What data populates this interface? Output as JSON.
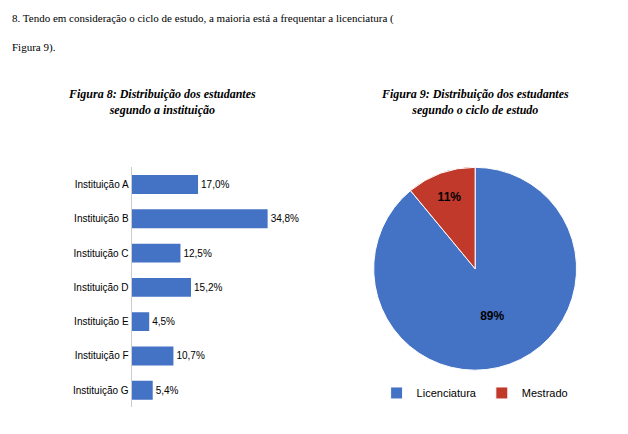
{
  "chart_data": [
    {
      "type": "bar",
      "title": "Figura 8: Distribuição dos estudantes\nsegundo a instituição",
      "annotations": [
        "8. Tendo em consideração o ciclo de estudo, a maioria está a frequentar a licenciatura (",
        "Figura 9)."
      ],
      "orientation": "horizontal",
      "categories": [
        "Instituição G",
        "Instituição F",
        "Instituição E",
        "Instituição D",
        "Instituição C",
        "Instituição B",
        "Instituição A"
      ],
      "values": [
        5.4,
        10.7,
        4.5,
        15.2,
        12.5,
        34.8,
        17.0
      ],
      "value_labels": [
        "5,4%",
        "10,7%",
        "4,5%",
        "15,2%",
        "12,5%",
        "34,8%",
        "17,0%"
      ],
      "data_labels": true,
      "color": "#4472C4",
      "xlim": [
        0,
        42
      ],
      "tick_labels": "y",
      "grid": false
    },
    {
      "type": "pie",
      "title": "Figura 9: Distribuição dos estudantes\nsegundo o ciclo de estudo",
      "categories": [
        "Licenciatura",
        "Mestrado"
      ],
      "values": [
        89,
        11
      ],
      "value_labels": [
        "89%",
        "11%"
      ],
      "data_labels": true,
      "colors": [
        "#4472C4",
        "#C0392B"
      ],
      "legend": "bottom"
    }
  ]
}
